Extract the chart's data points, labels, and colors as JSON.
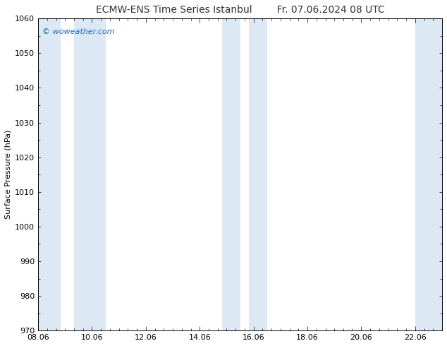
{
  "title_left": "ECMW-ENS Time Series Istanbul",
  "title_right": "Fr. 07.06.2024 08 UTC",
  "ylabel": "Surface Pressure (hPa)",
  "ylim": [
    970,
    1060
  ],
  "yticks": [
    970,
    980,
    990,
    1000,
    1010,
    1020,
    1030,
    1040,
    1050,
    1060
  ],
  "xlim_start": 8.0,
  "xlim_end": 23.0,
  "xticks": [
    8.0,
    10.0,
    12.0,
    14.0,
    16.0,
    18.0,
    20.0,
    22.0
  ],
  "xticklabels": [
    "08.06",
    "10.06",
    "12.06",
    "14.06",
    "16.06",
    "18.06",
    "20.06",
    "22.06"
  ],
  "background_color": "#ffffff",
  "plot_bg_color": "#ffffff",
  "shaded_bands": [
    {
      "x_start": 8.0,
      "x_end": 8.83,
      "color": "#dce9f5"
    },
    {
      "x_start": 9.33,
      "x_end": 10.5,
      "color": "#dce9f5"
    },
    {
      "x_start": 14.83,
      "x_end": 15.5,
      "color": "#dce9f5"
    },
    {
      "x_start": 15.83,
      "x_end": 16.5,
      "color": "#dce9f5"
    },
    {
      "x_start": 22.0,
      "x_end": 23.0,
      "color": "#dce9f5"
    }
  ],
  "watermark_text": "© woweather.com",
  "watermark_color": "#1a6ab5",
  "title_color": "#333333",
  "axis_color": "#000000",
  "tick_color": "#000000",
  "title_fontsize": 10,
  "tick_fontsize": 8,
  "ylabel_fontsize": 8
}
